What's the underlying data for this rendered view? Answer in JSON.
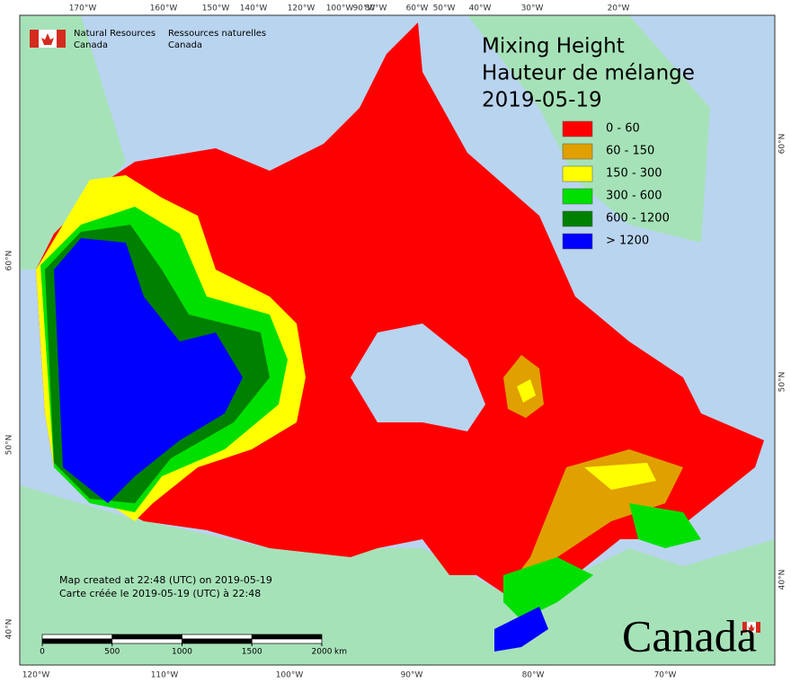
{
  "header": {
    "agency_en": [
      "Natural Resources",
      "Canada"
    ],
    "agency_fr": [
      "Ressources naturelles",
      "Canada"
    ]
  },
  "title": [
    "Mixing Height",
    "Hauteur de mélange",
    "2019-05-19"
  ],
  "legend": [
    {
      "label": "0 - 60",
      "color": "#ff0000"
    },
    {
      "label": "60 - 150",
      "color": "#e0a000"
    },
    {
      "label": "150 - 300",
      "color": "#ffff00"
    },
    {
      "label": "300 - 600",
      "color": "#00e000"
    },
    {
      "label": "600 - 1200",
      "color": "#008000"
    },
    {
      "label": "> 1200",
      "color": "#0000ff"
    }
  ],
  "graticule": {
    "top": [
      "170°W",
      "160°W",
      "150°W",
      "140°W",
      "120°W",
      "100°W",
      "90°W",
      "80°W",
      "60°W",
      "50°W",
      "40°W",
      "30°W",
      "20°W"
    ],
    "bottom": [
      "120°W",
      "110°W",
      "100°W",
      "90°W",
      "80°W",
      "70°W"
    ],
    "left": [
      "60°N",
      "50°N",
      "40°N"
    ],
    "right": [
      "60°N",
      "50°N",
      "40°N"
    ]
  },
  "footer": [
    "Map created at 22:48 (UTC) on 2019-05-19",
    "Carte créée le 2019-05-19 (UTC) à 22:48"
  ],
  "scale_bar": {
    "ticks": [
      0,
      500,
      1000,
      1500,
      2000
    ],
    "unit": "km"
  },
  "wordmark": "Canada"
}
